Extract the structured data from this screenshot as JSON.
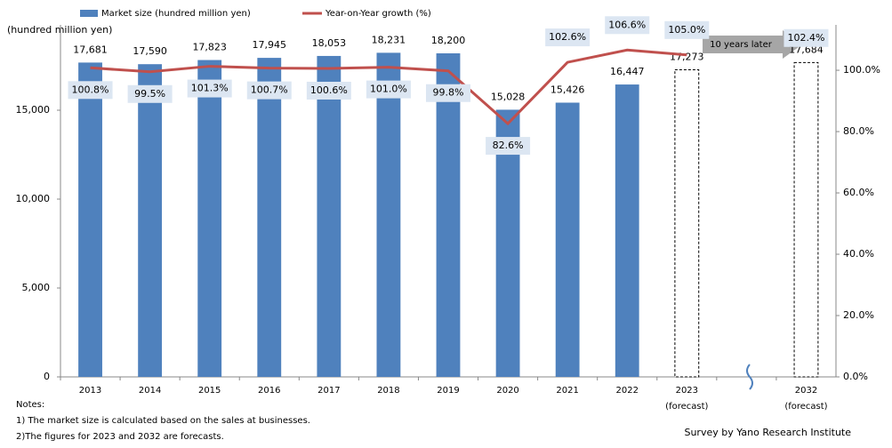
{
  "chart_data": {
    "type": "bar",
    "y_axis_label": "(hundred million yen)",
    "categories": [
      "2013",
      "2014",
      "2015",
      "2016",
      "2017",
      "2018",
      "2019",
      "2020",
      "2021",
      "2022",
      "2023",
      null,
      "2032"
    ],
    "category_sublabels": [
      null,
      null,
      null,
      null,
      null,
      null,
      null,
      null,
      null,
      null,
      "(forecast)",
      null,
      "(forecast)"
    ],
    "forecast_indices": [
      10,
      12
    ],
    "series": [
      {
        "name": "Market size (hundred million yen)",
        "type": "bar",
        "color": "#4f81bd",
        "values": [
          17681,
          17590,
          17823,
          17945,
          18053,
          18231,
          18200,
          15028,
          15426,
          16447,
          17273,
          null,
          17684
        ],
        "value_labels": [
          "17,681",
          "17,590",
          "17,823",
          "17,945",
          "18,053",
          "18,231",
          "18,200",
          "15,028",
          "15,426",
          "16,447",
          "17,273",
          null,
          "17,684"
        ]
      },
      {
        "name": "Year-on-Year growth (%)",
        "type": "line",
        "axis": "y2",
        "color": "#c0504d",
        "values": [
          100.8,
          99.5,
          101.3,
          100.7,
          100.6,
          101.0,
          99.8,
          82.6,
          102.6,
          106.6,
          105.0,
          null,
          102.4
        ],
        "value_labels": [
          "100.8%",
          "99.5%",
          "101.3%",
          "100.7%",
          "100.6%",
          "101.0%",
          "99.8%",
          "82.6%",
          "102.6%",
          "106.6%",
          "105.0%",
          null,
          "102.4%"
        ]
      }
    ],
    "ylim": [
      0,
      19800
    ],
    "yticks": [
      0,
      {
        "value": 5000,
        "label": "5,000"
      },
      {
        "value": 10000,
        "label": "10,000"
      },
      {
        "value": 15000,
        "label": "15,000"
      }
    ],
    "y2lim": [
      0,
      114.8
    ],
    "y2ticks": [
      {
        "value": 0,
        "label": "0.0%"
      },
      {
        "value": 20,
        "label": "20.0%"
      },
      {
        "value": 40,
        "label": "40.0%"
      },
      {
        "value": 60,
        "label": "60.0%"
      },
      {
        "value": 80,
        "label": "80.0%"
      },
      {
        "value": 100,
        "label": "100.0%"
      }
    ],
    "annotation": "10 years later",
    "notes": [
      "Notes:",
      "1) The market size is calculated based on the sales at businesses.",
      "2)The figures for 2023 and 2032 are forecasts."
    ],
    "source": "Survey by Yano Research Institute",
    "legend": "top-left"
  }
}
